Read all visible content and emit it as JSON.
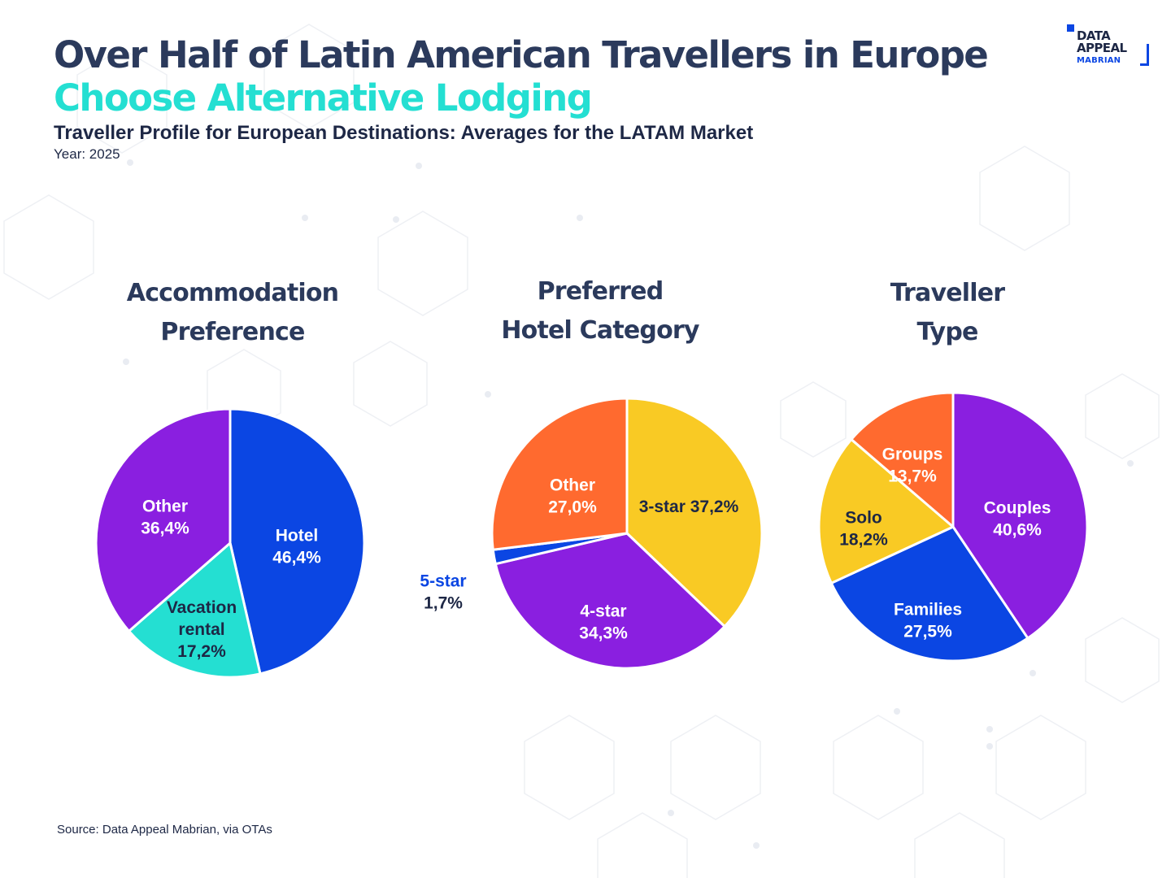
{
  "header": {
    "title_line1": "Over Half of Latin American Travellers in Europe",
    "title_line2": "Choose Alternative Lodging",
    "subtitle": "Traveller Profile for European Destinations: Averages for the LATAM Market",
    "year": "Year: 2025"
  },
  "logo": {
    "line1": "DATA",
    "line2": "APPEAL",
    "line3": "MABRIAN"
  },
  "source": "Source: Data Appeal Mabrian, via OTAs",
  "colors": {
    "navy": "#2b3a5c",
    "teal": "#24dfd2",
    "blue": "#0b46e3",
    "purple": "#8a1fe0",
    "yellow": "#f9ca24",
    "orange": "#ff6a2f",
    "dark_label": "#1d2745"
  },
  "chart_data": [
    {
      "type": "pie",
      "title_lines": [
        "Accommodation",
        "Preference"
      ],
      "slices": [
        {
          "label": "Hotel",
          "value": 46.4,
          "display": "46,4%",
          "color": "#0b46e3",
          "label_color": "#ffffff"
        },
        {
          "label": "Vacation rental",
          "value": 17.2,
          "display": "17,2%",
          "color": "#24dfd2",
          "label_color": "#1d2745"
        },
        {
          "label": "Other",
          "value": 36.4,
          "display": "36,4%",
          "color": "#8a1fe0",
          "label_color": "#ffffff"
        }
      ]
    },
    {
      "type": "pie",
      "title_lines": [
        "Preferred",
        "Hotel Category"
      ],
      "slices": [
        {
          "label": "3-star",
          "value": 37.2,
          "display": "37,2%",
          "color": "#f9ca24",
          "label_color": "#1d2745"
        },
        {
          "label": "4-star",
          "value": 34.3,
          "display": "34,3%",
          "color": "#8a1fe0",
          "label_color": "#ffffff"
        },
        {
          "label": "5-star",
          "value": 1.7,
          "display": "1,7%",
          "color": "#0b46e3",
          "label_color": "#0b46e3"
        },
        {
          "label": "Other",
          "value": 27.0,
          "display": "27,0%",
          "color": "#ff6a2f",
          "label_color": "#ffffff"
        }
      ]
    },
    {
      "type": "pie",
      "title_lines": [
        "Traveller",
        "Type"
      ],
      "slices": [
        {
          "label": "Couples",
          "value": 40.6,
          "display": "40,6%",
          "color": "#8a1fe0",
          "label_color": "#ffffff"
        },
        {
          "label": "Families",
          "value": 27.5,
          "display": "27,5%",
          "color": "#0b46e3",
          "label_color": "#ffffff"
        },
        {
          "label": "Solo",
          "value": 18.2,
          "display": "18,2%",
          "color": "#f9ca24",
          "label_color": "#1d2745"
        },
        {
          "label": "Groups",
          "value": 13.7,
          "display": "13,7%",
          "color": "#ff6a2f",
          "label_color": "#ffffff"
        }
      ]
    }
  ]
}
